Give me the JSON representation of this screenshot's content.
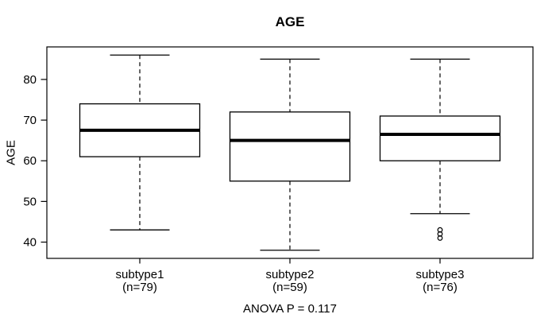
{
  "title": "AGE",
  "chart_data": {
    "type": "boxplot",
    "title": "AGE",
    "ylabel": "AGE",
    "xlabel": "",
    "annotation": "ANOVA P = 0.117",
    "ylim": [
      36,
      88
    ],
    "yticks": [
      40,
      50,
      60,
      70,
      80
    ],
    "grid": false,
    "legend": "none",
    "colors": {
      "line": "#000000",
      "box_fill": "#ffffff",
      "background": "#ffffff"
    },
    "groups": [
      {
        "label": "subtype1",
        "sublabel": "(n=79)",
        "n": 79,
        "whisker_low": 43,
        "q1": 61,
        "median": 67.5,
        "q3": 74,
        "whisker_high": 86,
        "outliers": []
      },
      {
        "label": "subtype2",
        "sublabel": "(n=59)",
        "n": 59,
        "whisker_low": 38,
        "q1": 55,
        "median": 65,
        "q3": 72,
        "whisker_high": 85,
        "outliers": []
      },
      {
        "label": "subtype3",
        "sublabel": "(n=76)",
        "n": 76,
        "whisker_low": 47,
        "q1": 60,
        "median": 66.5,
        "q3": 71,
        "whisker_high": 85,
        "outliers": [
          43,
          42,
          41
        ]
      }
    ]
  }
}
